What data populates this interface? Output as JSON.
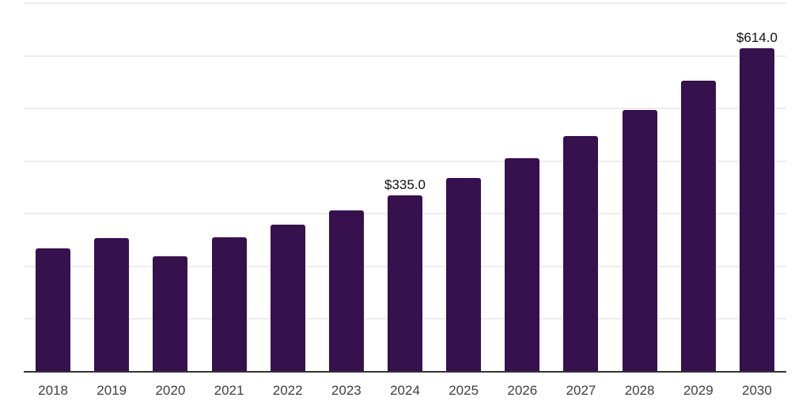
{
  "chart_data": {
    "type": "bar",
    "title": "",
    "xlabel": "",
    "ylabel": "",
    "categories": [
      "2018",
      "2019",
      "2020",
      "2021",
      "2022",
      "2023",
      "2024",
      "2025",
      "2026",
      "2027",
      "2028",
      "2029",
      "2030"
    ],
    "values": [
      235,
      254,
      220,
      256,
      280,
      306,
      335,
      368,
      406,
      448,
      497,
      553,
      614
    ],
    "data_labels": [
      "",
      "",
      "",
      "",
      "",
      "",
      "$335.0",
      "",
      "",
      "",
      "",
      "",
      "$614.0"
    ],
    "ylim": [
      0,
      700
    ],
    "grid_step": 100,
    "grid": "horizontal-only",
    "y_axis_tick_labels": "none",
    "legend": "none",
    "colors": {
      "bar": "#36114E",
      "axis_line": "#333333",
      "gridline": "#ededf0",
      "x_tick_text": "#404040",
      "value_label_text": "#111111",
      "background": "#ffffff"
    }
  }
}
